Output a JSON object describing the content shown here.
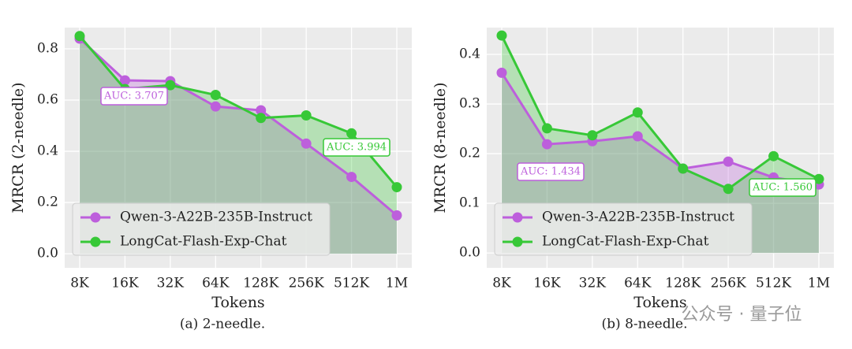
{
  "chart_data": [
    {
      "type": "line",
      "caption": "(a) 2-needle.",
      "xlabel": "Tokens",
      "ylabel": "MRCR (2-needle)",
      "categories": [
        "8K",
        "16K",
        "32K",
        "64K",
        "128K",
        "256K",
        "512K",
        "1M"
      ],
      "series": [
        {
          "name": "Qwen-3-A22B-235B-Instruct",
          "color": "#bd5fdc",
          "values": [
            0.84,
            0.677,
            0.674,
            0.575,
            0.56,
            0.43,
            0.3,
            0.15
          ]
        },
        {
          "name": "LongCat-Flash-Exp-Chat",
          "color": "#37c837",
          "values": [
            0.85,
            0.643,
            0.658,
            0.62,
            0.53,
            0.54,
            0.47,
            0.26
          ]
        }
      ],
      "annotations": [
        {
          "text": "AUC: 3.707",
          "color": "#bd5fdc"
        },
        {
          "text": "AUC: 3.994",
          "color": "#37c837"
        }
      ],
      "ylim": [
        -0.055,
        0.883
      ],
      "yticks": [
        {
          "value": 0,
          "label": "0.0"
        },
        0.2,
        0.4,
        0.6,
        0.8
      ],
      "grid": true,
      "legend": "lower left"
    },
    {
      "type": "line",
      "caption": "(b) 8-needle.",
      "xlabel": "Tokens",
      "ylabel": "MRCR (8-needle)",
      "categories": [
        "8K",
        "16K",
        "32K",
        "64K",
        "128K",
        "256K",
        "512K",
        "1M"
      ],
      "series": [
        {
          "name": "Qwen-3-A22B-235B-Instruct",
          "color": "#bd5fdc",
          "values": [
            0.363,
            0.219,
            0.225,
            0.235,
            0.17,
            0.184,
            0.152,
            0.138
          ]
        },
        {
          "name": "LongCat-Flash-Exp-Chat",
          "color": "#37c837",
          "values": [
            0.438,
            0.251,
            0.237,
            0.283,
            0.17,
            0.129,
            0.195,
            0.149
          ]
        }
      ],
      "annotations": [
        {
          "text": "AUC: 1.434",
          "color": "#bd5fdc"
        },
        {
          "text": "AUC: 1.560",
          "color": "#37c837"
        }
      ],
      "ylim": [
        -0.03,
        0.454
      ],
      "yticks": [
        {
          "value": 0,
          "label": "0.0"
        },
        0.1,
        0.2,
        0.3,
        0.4
      ],
      "grid": true,
      "legend": "lower left"
    }
  ],
  "watermark": "公众号 · 量子位"
}
